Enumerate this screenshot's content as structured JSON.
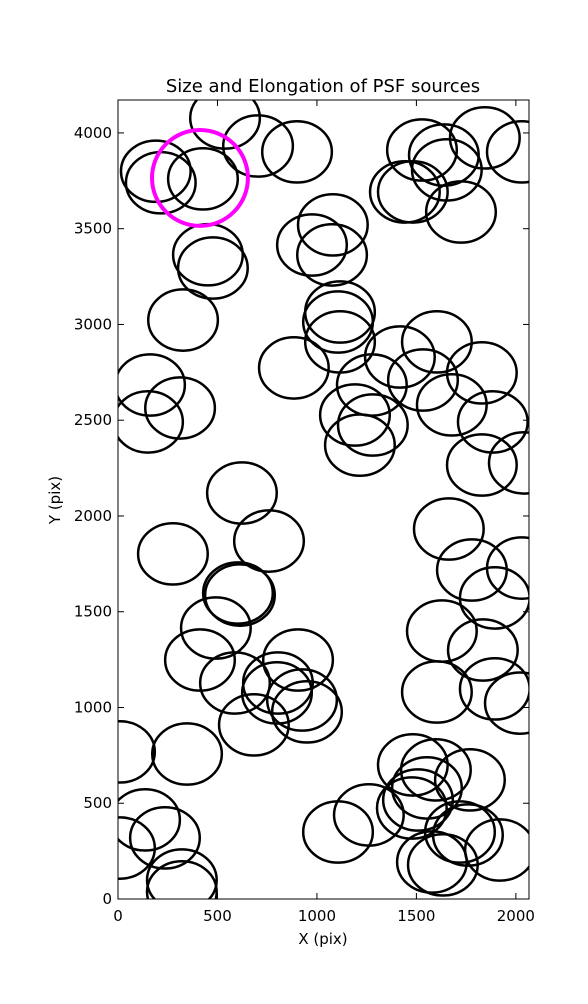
{
  "chart_data": {
    "type": "ellipse",
    "title": "Size and Elongation of PSF sources",
    "x_label": "X (pix)",
    "y_label": "Y (pix)",
    "xlim": [
      0,
      2066
    ],
    "ylim": [
      0,
      4172
    ],
    "xticks": [
      0,
      500,
      1000,
      1500,
      2000
    ],
    "yticks": [
      0,
      500,
      1000,
      1500,
      2000,
      2500,
      3000,
      3500,
      4000
    ],
    "series": [
      {
        "color": "#000000",
        "line_width": 2.5,
        "width": 350,
        "height": 320,
        "x": [
          190,
          215,
          538,
          704,
          900,
          427,
          452,
          477,
          327,
          161,
          151,
          312,
          1080,
          975,
          1076,
          1116,
          1106,
          1116,
          884,
          1276,
          1417,
          1533,
          1603,
          1829,
          1678,
          1884,
          1829,
          2040,
          1191,
          1281,
          1216,
          1442,
          1482,
          1528,
          1653,
          1638,
          1724,
          1844,
          2030,
          623,
          759,
          276,
          603,
          613,
          492,
          412,
          588,
          804,
          905,
          799,
          925,
          950,
          683,
          1663,
          1779,
          2030,
          1894,
          1628,
          1834,
          1894,
          1603,
          2020,
          10,
          347,
          136,
          10,
          236,
          321,
          321,
          1106,
          1261,
          1482,
          1598,
          1769,
          1508,
          1553,
          1477,
          1578,
          1633,
          1759,
          1719,
          1920
        ],
        "y": [
          3800,
          3740,
          4078,
          3932,
          3901,
          3760,
          3364,
          3295,
          3023,
          2684,
          2491,
          2564,
          3520,
          3415,
          3363,
          3065,
          3013,
          2909,
          2773,
          2684,
          2830,
          2710,
          2909,
          2747,
          2580,
          2491,
          2266,
          2277,
          2527,
          2475,
          2370,
          3692,
          3692,
          3911,
          3807,
          3885,
          3587,
          3974,
          3901,
          2120,
          1869,
          1802,
          1598,
          1587,
          1415,
          1248,
          1128,
          1128,
          1248,
          1076,
          1039,
          977,
          909,
          1932,
          1718,
          1728,
          1572,
          1399,
          1300,
          1097,
          1081,
          1023,
          768,
          757,
          413,
          266,
          319,
          99,
          37,
          350,
          439,
          700,
          674,
          622,
          517,
          580,
          475,
          193,
          178,
          334,
          350,
          256
        ]
      },
      {
        "color": "#ff00ff",
        "line_width": 4,
        "width": 482,
        "height": 501,
        "x": [
          412
        ],
        "y": [
          3765
        ]
      }
    ]
  }
}
